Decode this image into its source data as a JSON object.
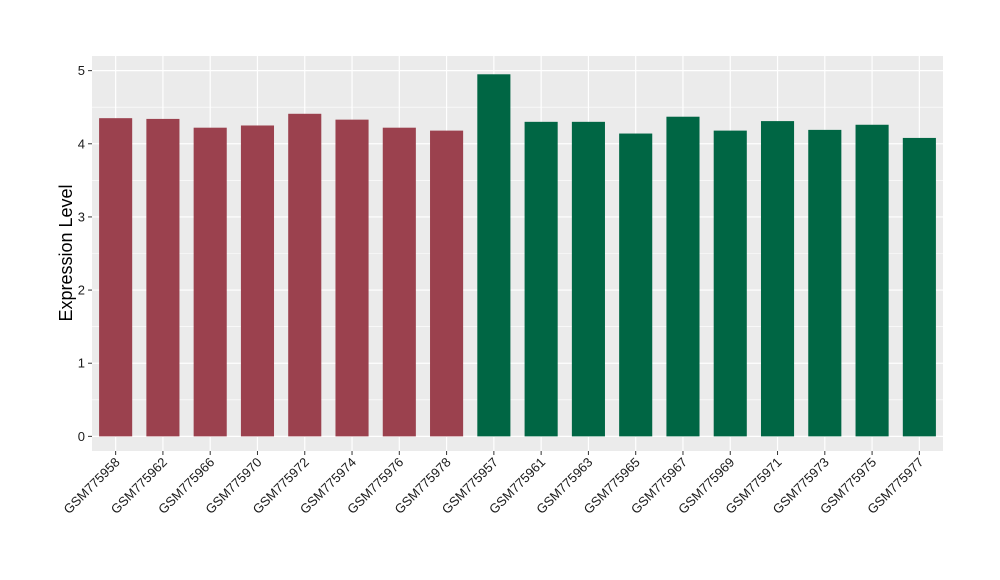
{
  "chart_data": {
    "type": "bar",
    "title": "",
    "xlabel": "",
    "ylabel": "Expression Level",
    "ylim": [
      -0.2,
      5.2
    ],
    "yticks": [
      0,
      1,
      2,
      3,
      4,
      5
    ],
    "grid": true,
    "legend": "none",
    "panel_background": "#EBEBEB",
    "gridline_color": "#FFFFFF",
    "group_colors": {
      "group1": "#9B414E",
      "group2": "#006644"
    },
    "categories": [
      "GSM775958",
      "GSM775962",
      "GSM775966",
      "GSM775970",
      "GSM775972",
      "GSM775974",
      "GSM775976",
      "GSM775978",
      "GSM775957",
      "GSM775961",
      "GSM775963",
      "GSM775965",
      "GSM775967",
      "GSM775969",
      "GSM775971",
      "GSM775973",
      "GSM775975",
      "GSM775977"
    ],
    "values": [
      4.35,
      4.34,
      4.22,
      4.25,
      4.41,
      4.33,
      4.22,
      4.18,
      4.95,
      4.3,
      4.3,
      4.14,
      4.37,
      4.18,
      4.31,
      4.19,
      4.26,
      4.08
    ],
    "groups": [
      "group1",
      "group1",
      "group1",
      "group1",
      "group1",
      "group1",
      "group1",
      "group1",
      "group2",
      "group2",
      "group2",
      "group2",
      "group2",
      "group2",
      "group2",
      "group2",
      "group2",
      "group2"
    ]
  }
}
